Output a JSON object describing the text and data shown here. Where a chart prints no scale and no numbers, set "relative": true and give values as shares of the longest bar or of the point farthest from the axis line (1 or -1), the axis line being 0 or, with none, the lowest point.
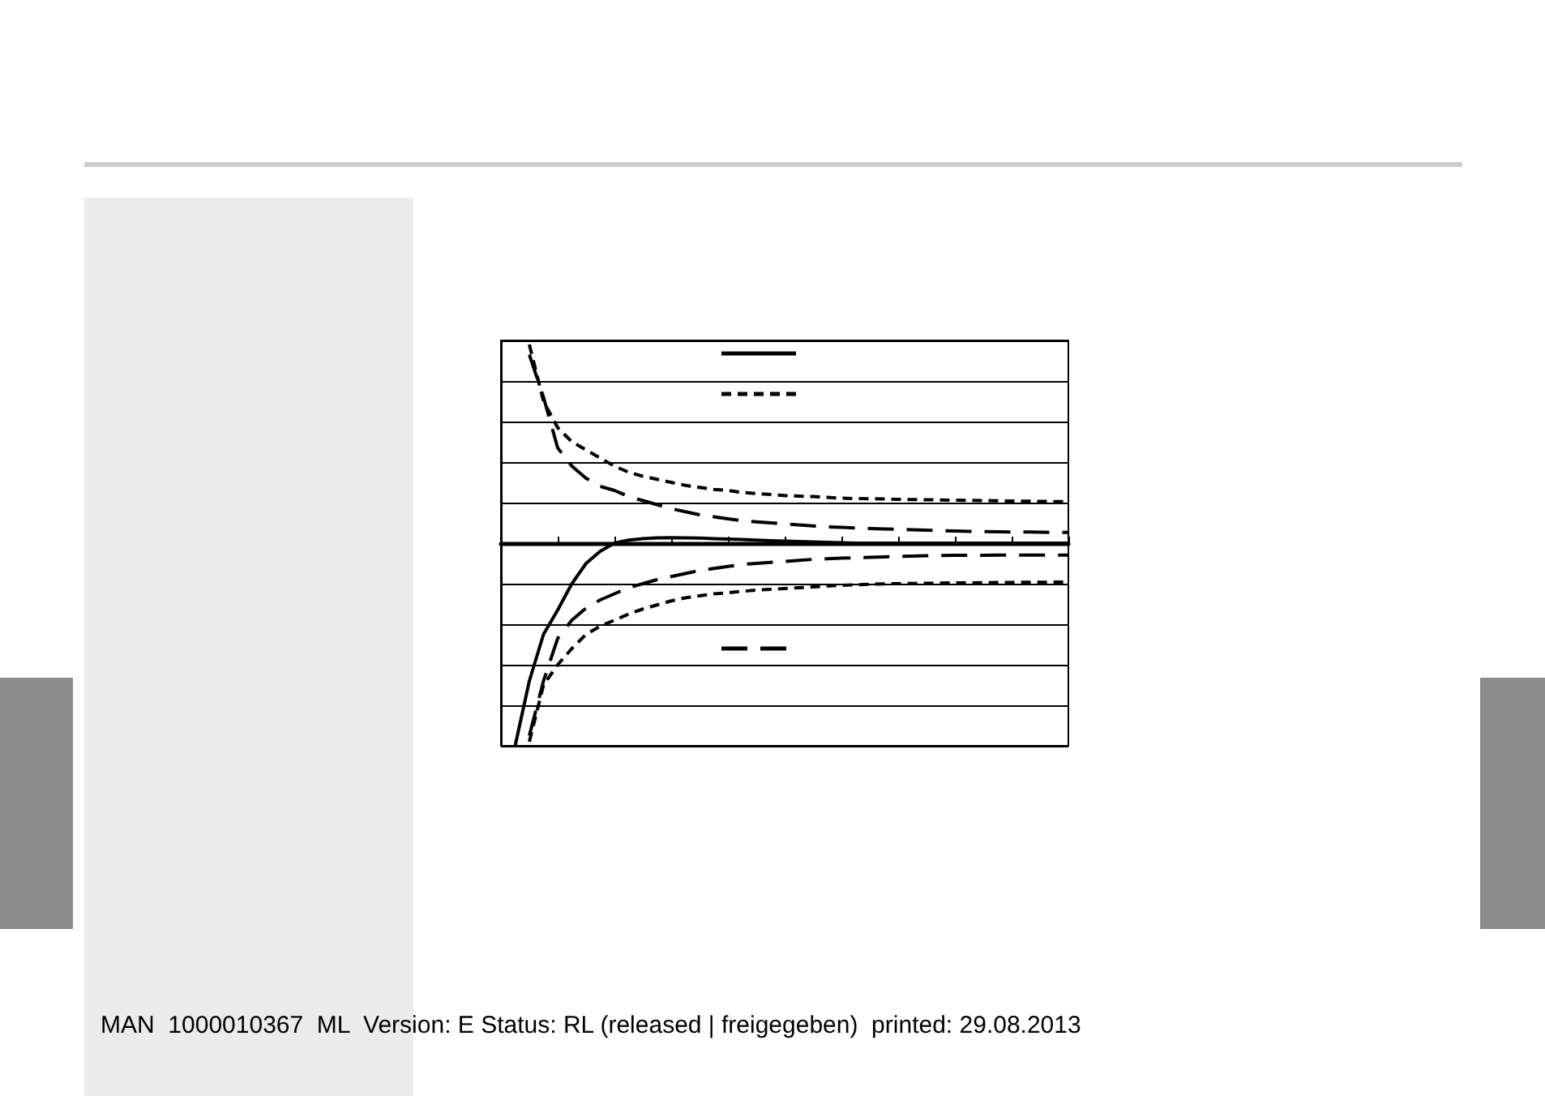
{
  "chart_data": {
    "type": "line",
    "relative": true,
    "grid": "y",
    "marker": "none",
    "annotations": [
      "MAN  1000010367  ML  Version: E Status: RL (released | freigegeben)  printed: 29.08.2013"
    ],
    "categories": [
      null,
      null,
      null,
      null,
      null,
      null,
      null,
      null,
      null,
      null,
      null,
      null,
      null,
      null,
      null,
      null,
      null,
      null,
      null,
      null,
      null,
      null,
      null,
      null,
      null,
      null,
      null,
      null,
      null,
      null,
      null,
      null,
      null,
      null,
      null,
      null,
      null,
      null,
      null,
      null,
      null
    ],
    "series": [
      {
        "color": "#000000",
        "line_style": "solid",
        "values": [
          null,
          -1.0,
          -0.68,
          -0.45,
          -0.33,
          -0.2,
          -0.1,
          -0.04,
          0.0,
          0.015,
          0.022,
          0.026,
          0.027,
          0.026,
          0.025,
          0.022,
          0.02,
          0.018,
          0.015,
          0.012,
          0.01,
          0.008,
          0.006,
          0.004,
          0.002,
          0,
          0,
          0,
          0,
          0,
          0,
          0,
          0,
          0,
          0,
          0,
          0,
          0,
          0,
          0,
          0
        ]
      },
      {
        "color": "#000000",
        "line_style": "dashed",
        "values": [
          null,
          null,
          0.98,
          0.7,
          0.57,
          0.5,
          0.46,
          0.42,
          0.38,
          0.35,
          0.33,
          0.315,
          0.3,
          0.285,
          0.275,
          0.265,
          0.26,
          0.25,
          0.245,
          0.24,
          0.235,
          0.232,
          0.23,
          0.226,
          0.222,
          0.22,
          0.219,
          0.218,
          0.216,
          0.215,
          0.214,
          0.213,
          0.212,
          0.211,
          0.21,
          0.209,
          0.208,
          0.207,
          0.206,
          0.205,
          0.205
        ]
      },
      {
        "color": "#000000",
        "line_style": "dashed",
        "values": [
          null,
          null,
          -0.98,
          -0.7,
          -0.6,
          -0.52,
          -0.45,
          -0.41,
          -0.38,
          -0.35,
          -0.325,
          -0.305,
          -0.285,
          -0.27,
          -0.26,
          -0.25,
          -0.245,
          -0.238,
          -0.232,
          -0.228,
          -0.224,
          -0.22,
          -0.216,
          -0.212,
          -0.208,
          -0.205,
          -0.203,
          -0.201,
          -0.2,
          -0.199,
          -0.198,
          -0.197,
          -0.196,
          -0.196,
          -0.195,
          -0.194,
          -0.194,
          -0.193,
          -0.193,
          -0.192,
          -0.192
        ]
      },
      {
        "color": "#000000",
        "line_style": "long_dashed",
        "values": [
          null,
          null,
          0.93,
          0.72,
          0.47,
          0.38,
          0.32,
          0.28,
          0.26,
          0.23,
          0.21,
          0.19,
          0.17,
          0.155,
          0.14,
          0.13,
          0.12,
          0.11,
          0.105,
          0.1,
          0.095,
          0.09,
          0.085,
          0.08,
          0.078,
          0.075,
          0.072,
          0.07,
          0.068,
          0.066,
          0.064,
          0.062,
          0.06,
          0.058,
          0.057,
          0.056,
          0.055,
          0.055,
          0.054,
          0.053,
          0.053
        ]
      },
      {
        "color": "#000000",
        "line_style": "long_dashed",
        "values": [
          null,
          null,
          -0.95,
          -0.68,
          -0.47,
          -0.38,
          -0.32,
          -0.28,
          -0.25,
          -0.22,
          -0.2,
          -0.18,
          -0.165,
          -0.15,
          -0.135,
          -0.125,
          -0.115,
          -0.105,
          -0.1,
          -0.095,
          -0.09,
          -0.085,
          -0.08,
          -0.077,
          -0.074,
          -0.072,
          -0.07,
          -0.068,
          -0.066,
          -0.064,
          -0.062,
          -0.061,
          -0.06,
          -0.06,
          -0.06,
          -0.059,
          -0.059,
          -0.059,
          -0.059,
          -0.059,
          -0.059
        ]
      }
    ]
  }
}
